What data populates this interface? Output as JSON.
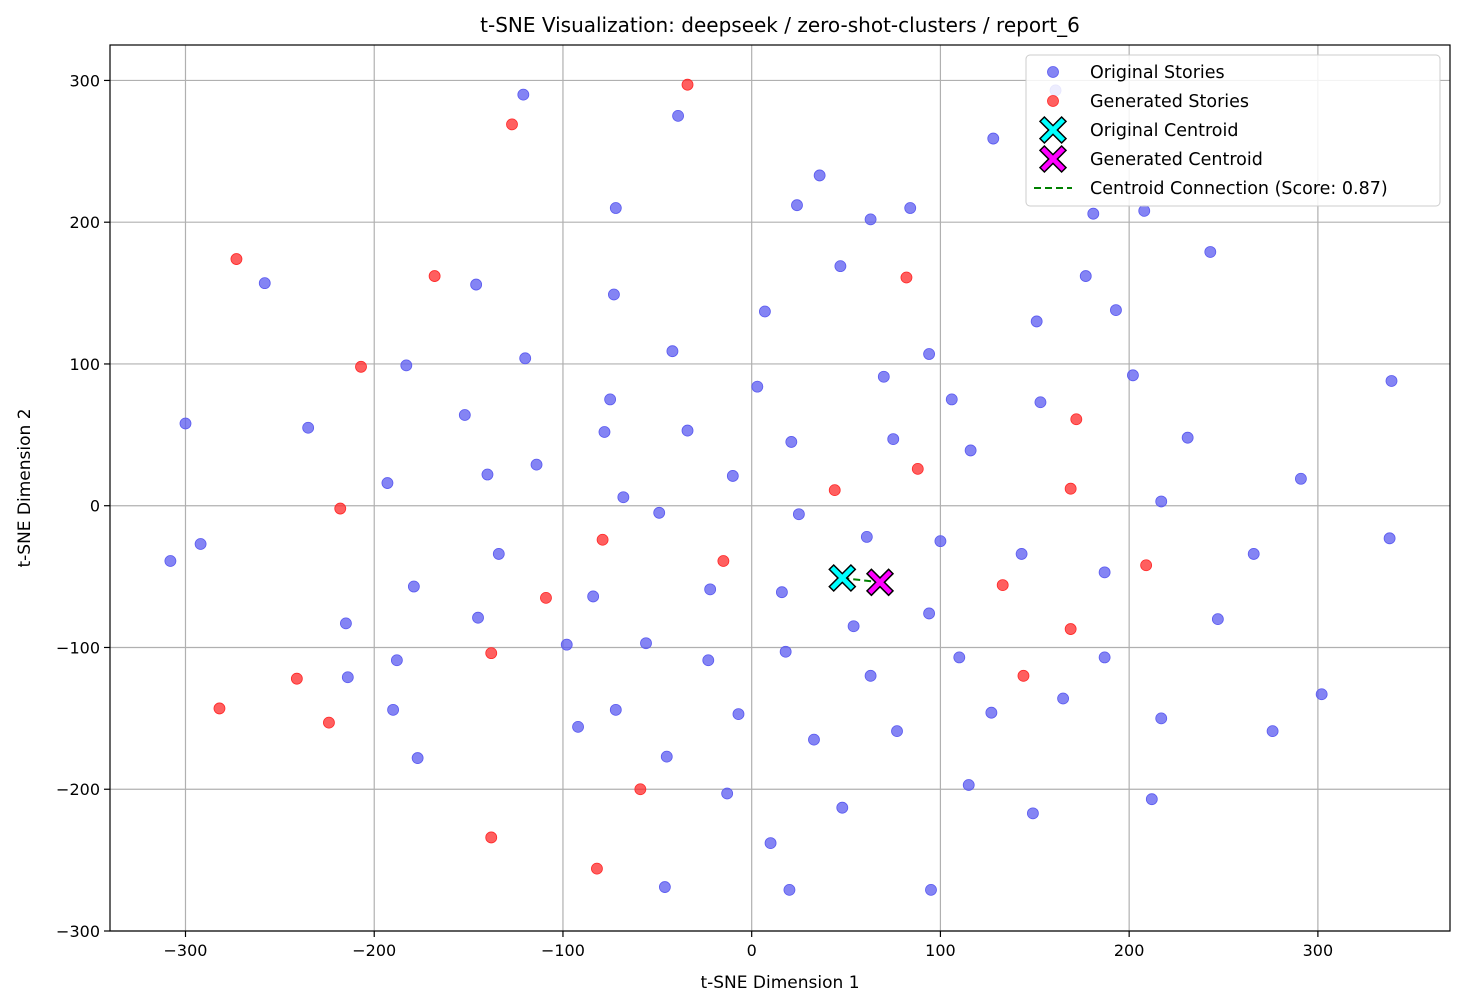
{
  "chart_data": {
    "type": "scatter",
    "title": "t-SNE Visualization: deepseek / zero-shot-clusters / report_6",
    "xlabel": "t-SNE Dimension 1",
    "ylabel": "t-SNE Dimension 2",
    "xlim": [
      -340,
      370
    ],
    "ylim": [
      -300,
      325
    ],
    "xticks": [
      -300,
      -200,
      -100,
      0,
      100,
      200,
      300
    ],
    "yticks": [
      -300,
      -200,
      -100,
      0,
      100,
      200,
      300
    ],
    "xtick_labels": [
      "−300",
      "−200",
      "−100",
      "0",
      "100",
      "200",
      "300"
    ],
    "ytick_labels": [
      "−300",
      "−200",
      "−100",
      "0",
      "100",
      "200",
      "300"
    ],
    "grid": true,
    "legend_position": "top-right",
    "series": [
      {
        "name": "Original Stories",
        "color": "#5b5bf0",
        "marker": "circle",
        "points": [
          [
            -121,
            290
          ],
          [
            -39,
            275
          ],
          [
            128,
            259
          ],
          [
            36,
            233
          ],
          [
            24,
            212
          ],
          [
            -72,
            210
          ],
          [
            63,
            202
          ],
          [
            84,
            210
          ],
          [
            161,
            293
          ],
          [
            181,
            206
          ],
          [
            208,
            208
          ],
          [
            243,
            179
          ],
          [
            -258,
            157
          ],
          [
            -146,
            156
          ],
          [
            -73,
            149
          ],
          [
            47,
            169
          ],
          [
            177,
            162
          ],
          [
            7,
            137
          ],
          [
            151,
            130
          ],
          [
            193,
            138
          ],
          [
            -120,
            104
          ],
          [
            -42,
            109
          ],
          [
            -183,
            99
          ],
          [
            94,
            107
          ],
          [
            70,
            91
          ],
          [
            202,
            92
          ],
          [
            339,
            88
          ],
          [
            -300,
            58
          ],
          [
            -235,
            55
          ],
          [
            -152,
            64
          ],
          [
            -75,
            75
          ],
          [
            -78,
            52
          ],
          [
            -34,
            53
          ],
          [
            3,
            84
          ],
          [
            106,
            75
          ],
          [
            153,
            73
          ],
          [
            21,
            45
          ],
          [
            75,
            47
          ],
          [
            116,
            39
          ],
          [
            231,
            48
          ],
          [
            -193,
            16
          ],
          [
            -140,
            22
          ],
          [
            -114,
            29
          ],
          [
            -68,
            6
          ],
          [
            -10,
            21
          ],
          [
            -49,
            -5
          ],
          [
            25,
            -6
          ],
          [
            61,
            -22
          ],
          [
            217,
            3
          ],
          [
            291,
            19
          ],
          [
            338,
            -23
          ],
          [
            -308,
            -39
          ],
          [
            -292,
            -27
          ],
          [
            -134,
            -34
          ],
          [
            -179,
            -57
          ],
          [
            -84,
            -64
          ],
          [
            -22,
            -59
          ],
          [
            16,
            -61
          ],
          [
            100,
            -25
          ],
          [
            143,
            -34
          ],
          [
            187,
            -47
          ],
          [
            266,
            -34
          ],
          [
            -215,
            -83
          ],
          [
            -145,
            -79
          ],
          [
            -56,
            -97
          ],
          [
            -98,
            -98
          ],
          [
            -23,
            -109
          ],
          [
            18,
            -103
          ],
          [
            54,
            -85
          ],
          [
            94,
            -76
          ],
          [
            110,
            -107
          ],
          [
            187,
            -107
          ],
          [
            247,
            -80
          ],
          [
            -188,
            -109
          ],
          [
            -214,
            -121
          ],
          [
            -190,
            -144
          ],
          [
            -72,
            -144
          ],
          [
            -92,
            -156
          ],
          [
            -7,
            -147
          ],
          [
            63,
            -120
          ],
          [
            77,
            -159
          ],
          [
            127,
            -146
          ],
          [
            165,
            -136
          ],
          [
            217,
            -150
          ],
          [
            302,
            -133
          ],
          [
            276,
            -159
          ],
          [
            -177,
            -178
          ],
          [
            -45,
            -177
          ],
          [
            33,
            -165
          ],
          [
            -13,
            -203
          ],
          [
            48,
            -213
          ],
          [
            115,
            -197
          ],
          [
            149,
            -217
          ],
          [
            212,
            -207
          ],
          [
            10,
            -238
          ],
          [
            -46,
            -269
          ],
          [
            20,
            -271
          ],
          [
            95,
            -271
          ]
        ]
      },
      {
        "name": "Generated Stories",
        "color": "#ff2a2a",
        "marker": "circle",
        "points": [
          [
            -34,
            297
          ],
          [
            -127,
            269
          ],
          [
            -273,
            174
          ],
          [
            -168,
            162
          ],
          [
            82,
            161
          ],
          [
            -207,
            98
          ],
          [
            172,
            61
          ],
          [
            88,
            26
          ],
          [
            44,
            11
          ],
          [
            169,
            12
          ],
          [
            -218,
            -2
          ],
          [
            -79,
            -24
          ],
          [
            -15,
            -39
          ],
          [
            209,
            -42
          ],
          [
            -109,
            -65
          ],
          [
            133,
            -56
          ],
          [
            169,
            -87
          ],
          [
            -138,
            -104
          ],
          [
            -241,
            -122
          ],
          [
            144,
            -120
          ],
          [
            -282,
            -143
          ],
          [
            -224,
            -153
          ],
          [
            -59,
            -200
          ],
          [
            -138,
            -234
          ],
          [
            -82,
            -256
          ]
        ]
      },
      {
        "name": "Original Centroid",
        "color": "#00ffff",
        "marker": "x-filled",
        "points": [
          [
            48,
            -51
          ]
        ]
      },
      {
        "name": "Generated Centroid",
        "color": "#ff00ff",
        "marker": "x-filled",
        "points": [
          [
            68,
            -54
          ]
        ]
      },
      {
        "name": "Centroid Connection (Score: 0.87)",
        "color": "#008000",
        "marker": "dashed-line",
        "points": [
          [
            48,
            -51
          ],
          [
            68,
            -54
          ]
        ]
      }
    ]
  }
}
